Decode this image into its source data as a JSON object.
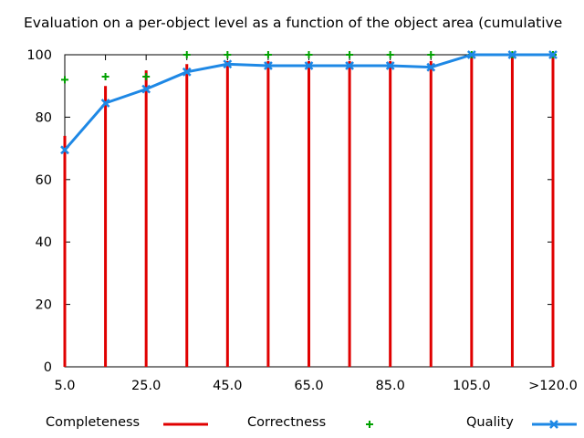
{
  "chart_data": {
    "type": "bar",
    "title": "Evaluation on a per-object level as a function of the object area (cumulative",
    "categories": [
      "5.0",
      "15.0",
      "25.0",
      "35.0",
      "45.0",
      "55.0",
      "65.0",
      "75.0",
      "85.0",
      "95.0",
      "105.0",
      "115.0",
      ">120.0"
    ],
    "x_tick_labels": [
      "5.0",
      "25.0",
      "45.0",
      "65.0",
      "85.0",
      "105.0",
      ">120.0"
    ],
    "ylim": [
      0,
      100
    ],
    "y_ticks": [
      0,
      20,
      40,
      60,
      80,
      100
    ],
    "grid": false,
    "legend_placement": "bottom",
    "series": [
      {
        "name": "Completeness",
        "type": "impulse",
        "color": "#e00000",
        "values": [
          74,
          90,
          95,
          97,
          98,
          98,
          98,
          98,
          98,
          98,
          100,
          100,
          100
        ]
      },
      {
        "name": "Correctness",
        "type": "points",
        "color": "#00a000",
        "values": [
          92,
          93,
          93,
          100,
          100,
          100,
          100,
          100,
          100,
          100,
          100,
          100,
          100
        ]
      },
      {
        "name": "Quality",
        "type": "linespoints",
        "color": "#1e88e5",
        "values": [
          69.5,
          84.5,
          89,
          94.5,
          97,
          96.5,
          96.5,
          96.5,
          96.5,
          96,
          100,
          100,
          100
        ]
      }
    ]
  }
}
